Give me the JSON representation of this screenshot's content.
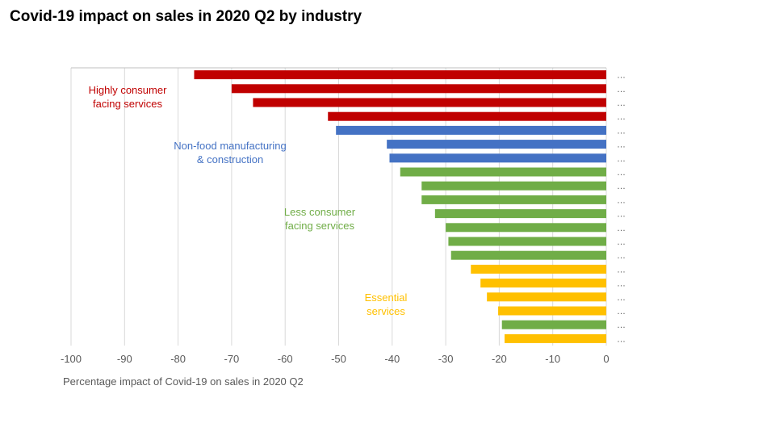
{
  "title": "Covid-19 impact on sales in 2020 Q2 by industry",
  "chart_data": {
    "type": "bar",
    "orientation": "horizontal",
    "title": "Covid-19 impact on sales in 2020 Q2 by industry",
    "xlabel": "Percentage impact of Covid-19 on sales in 2020 Q2",
    "ylabel": "",
    "xlim": [
      -100,
      0
    ],
    "xticks": [
      -100,
      -90,
      -80,
      -70,
      -60,
      -50,
      -40,
      -30,
      -20,
      -10,
      0
    ],
    "grid": true,
    "category_label": "…",
    "colors": {
      "highly": "#c00000",
      "nonfood": "#4472c4",
      "less": "#70ad47",
      "essential": "#ffc000"
    },
    "groups": [
      {
        "key": "highly",
        "label_lines": [
          "Highly consumer",
          "facing services"
        ],
        "color": "#c00000"
      },
      {
        "key": "nonfood",
        "label_lines": [
          "Non-food manufacturing",
          "& construction"
        ],
        "color": "#4472c4"
      },
      {
        "key": "less",
        "label_lines": [
          "Less consumer",
          "facing services"
        ],
        "color": "#70ad47"
      },
      {
        "key": "essential",
        "label_lines": [
          "Essential",
          "services"
        ],
        "color": "#ffc000"
      }
    ],
    "bars": [
      {
        "value": -77,
        "group": "highly"
      },
      {
        "value": -70,
        "group": "highly"
      },
      {
        "value": -66,
        "group": "highly"
      },
      {
        "value": -52,
        "group": "highly"
      },
      {
        "value": -50.5,
        "group": "nonfood"
      },
      {
        "value": -41,
        "group": "nonfood"
      },
      {
        "value": -40.5,
        "group": "nonfood"
      },
      {
        "value": -38.5,
        "group": "less"
      },
      {
        "value": -34.5,
        "group": "less"
      },
      {
        "value": -34.5,
        "group": "less"
      },
      {
        "value": -32,
        "group": "less"
      },
      {
        "value": -30,
        "group": "less"
      },
      {
        "value": -29.5,
        "group": "less"
      },
      {
        "value": -29,
        "group": "less"
      },
      {
        "value": -25.3,
        "group": "essential"
      },
      {
        "value": -23.5,
        "group": "essential"
      },
      {
        "value": -22.3,
        "group": "essential"
      },
      {
        "value": -20.2,
        "group": "essential"
      },
      {
        "value": -19.5,
        "group": "less"
      },
      {
        "value": -19,
        "group": "essential"
      }
    ]
  }
}
